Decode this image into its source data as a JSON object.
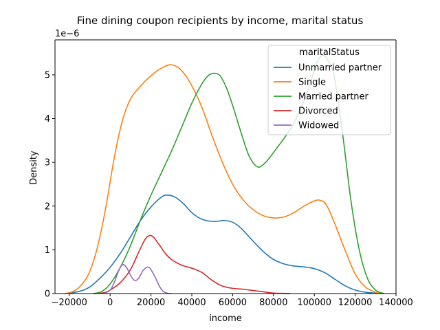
{
  "chart_data": {
    "type": "line",
    "title": "Fine dining coupon recipients by income, marital status",
    "xlabel": "income",
    "ylabel": "Density",
    "y_offset_label": "1e−6",
    "xlim": [
      -27000,
      140000
    ],
    "ylim": [
      0,
      5.8
    ],
    "x_ticks": [
      -20000,
      0,
      20000,
      40000,
      60000,
      80000,
      100000,
      120000,
      140000
    ],
    "x_tick_labels": [
      "−20000",
      "0",
      "20000",
      "40000",
      "60000",
      "80000",
      "100000",
      "120000",
      "140000"
    ],
    "y_ticks": [
      0,
      1,
      2,
      3,
      4,
      5
    ],
    "y_tick_labels": [
      "0",
      "1",
      "2",
      "3",
      "4",
      "5"
    ],
    "grid": false,
    "legend": {
      "title": "maritalStatus",
      "placement": "top-right"
    },
    "series": [
      {
        "name": "Unmarried partner",
        "color": "#1f77b4",
        "x": [
          -22000,
          -15000,
          -10000,
          -5000,
          0,
          5000,
          10000,
          15000,
          20000,
          25000,
          28000,
          32000,
          36000,
          40000,
          44000,
          48000,
          52000,
          56000,
          60000,
          64000,
          68000,
          72000,
          76000,
          80000,
          85000,
          90000,
          95000,
          100000,
          105000,
          110000,
          115000,
          120000,
          125000,
          130000,
          133000
        ],
        "y": [
          0,
          0.05,
          0.15,
          0.35,
          0.6,
          0.92,
          1.3,
          1.68,
          1.98,
          2.2,
          2.25,
          2.2,
          2.05,
          1.85,
          1.72,
          1.66,
          1.65,
          1.67,
          1.63,
          1.5,
          1.3,
          1.1,
          0.92,
          0.78,
          0.68,
          0.63,
          0.61,
          0.57,
          0.48,
          0.33,
          0.18,
          0.08,
          0.03,
          0.01,
          0
        ]
      },
      {
        "name": "Single",
        "color": "#ff7f0e",
        "x": [
          -22000,
          -18000,
          -14000,
          -10000,
          -6000,
          -2000,
          2000,
          6000,
          10000,
          15000,
          20000,
          25000,
          30000,
          35000,
          40000,
          45000,
          50000,
          55000,
          60000,
          65000,
          70000,
          75000,
          80000,
          85000,
          90000,
          95000,
          100000,
          103000,
          106000,
          110000,
          115000,
          120000,
          125000,
          130000,
          134000
        ],
        "y": [
          0,
          0.05,
          0.2,
          0.5,
          1.1,
          2.0,
          3.1,
          3.95,
          4.45,
          4.75,
          4.98,
          5.15,
          5.23,
          5.1,
          4.75,
          4.25,
          3.6,
          3.0,
          2.5,
          2.15,
          1.92,
          1.78,
          1.73,
          1.75,
          1.85,
          2.0,
          2.12,
          2.13,
          2.02,
          1.6,
          1.0,
          0.45,
          0.15,
          0.03,
          0
        ]
      },
      {
        "name": "Married partner",
        "color": "#2ca02c",
        "x": [
          -8000,
          -4000,
          0,
          5000,
          10000,
          15000,
          20000,
          25000,
          30000,
          35000,
          40000,
          45000,
          48000,
          50000,
          52000,
          54000,
          57000,
          60000,
          64000,
          68000,
          72000,
          75000,
          78000,
          82000,
          86000,
          90000,
          94000,
          98000,
          101000,
          104000,
          107000,
          110000,
          114000,
          118000,
          122000,
          126000,
          130000,
          134000
        ],
        "y": [
          0,
          0.05,
          0.22,
          0.6,
          1.1,
          1.7,
          2.25,
          2.75,
          3.25,
          3.8,
          4.35,
          4.8,
          4.98,
          5.03,
          5.03,
          4.97,
          4.7,
          4.3,
          3.7,
          3.15,
          2.9,
          2.95,
          3.1,
          3.35,
          3.6,
          3.9,
          4.3,
          4.8,
          5.25,
          5.45,
          5.3,
          4.9,
          3.6,
          2.1,
          1.0,
          0.35,
          0.08,
          0
        ]
      },
      {
        "name": "Divorced",
        "color": "#d62728",
        "x": [
          -8000,
          -3000,
          0,
          5000,
          10000,
          14000,
          17000,
          19000,
          21000,
          24000,
          27000,
          30000,
          35000,
          40000,
          45000,
          50000,
          55000,
          60000,
          65000,
          70000,
          75000,
          80000,
          85000,
          88000
        ],
        "y": [
          0,
          0.02,
          0.08,
          0.25,
          0.55,
          0.95,
          1.23,
          1.32,
          1.3,
          1.12,
          0.92,
          0.78,
          0.65,
          0.58,
          0.48,
          0.3,
          0.17,
          0.12,
          0.1,
          0.07,
          0.04,
          0.01,
          0.005,
          0
        ]
      },
      {
        "name": "Widowed",
        "color": "#9467bd",
        "x": [
          -3000,
          0,
          2000,
          4000,
          6000,
          8000,
          10000,
          12000,
          14000,
          16000,
          18000,
          19000,
          20000,
          22000,
          24000,
          26000,
          28000,
          30000
        ],
        "y": [
          0,
          0.08,
          0.25,
          0.5,
          0.66,
          0.6,
          0.42,
          0.3,
          0.35,
          0.52,
          0.6,
          0.6,
          0.55,
          0.38,
          0.18,
          0.05,
          0.01,
          0
        ]
      }
    ]
  }
}
